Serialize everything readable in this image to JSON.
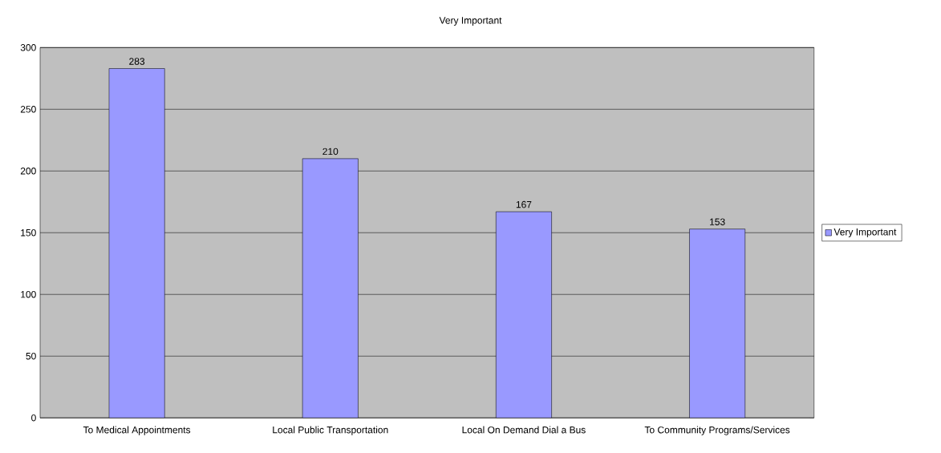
{
  "chart_data": {
    "type": "bar",
    "title": "Very Important",
    "categories": [
      "To Medical Appointments",
      "Local Public Transportation",
      "Local On Demand Dial a Bus",
      "To Community Programs/Services"
    ],
    "series": [
      {
        "name": "Very Important",
        "color": "#9999ff",
        "values": [
          283,
          210,
          167,
          153
        ]
      }
    ],
    "ylim": [
      0,
      300
    ],
    "yticks": [
      0,
      50,
      100,
      150,
      200,
      250,
      300
    ],
    "grid": "y",
    "legend": "right",
    "data_labels": true
  }
}
